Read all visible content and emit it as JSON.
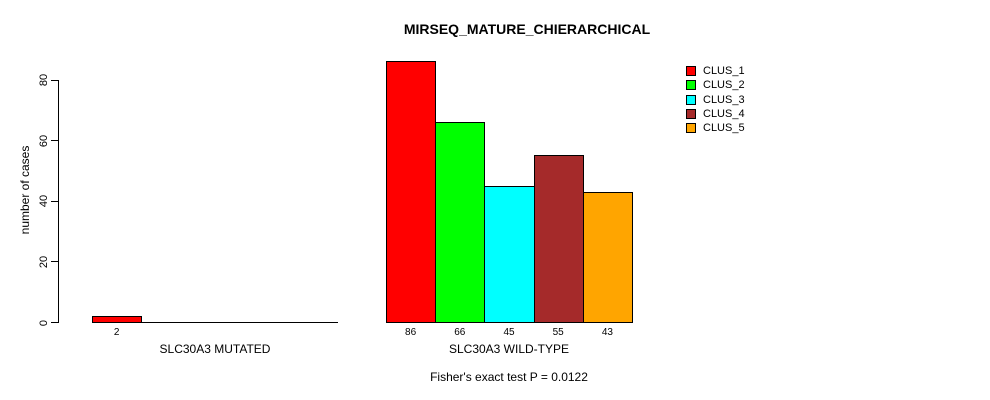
{
  "chart_data": {
    "type": "bar",
    "title": "MIRSEQ_MATURE_CHIERARCHICAL",
    "ylabel": "number of cases",
    "yticks": [
      0,
      20,
      40,
      60,
      80
    ],
    "ylim": [
      0,
      86
    ],
    "grid": false,
    "legend_position": "top-right",
    "categories": [
      "SLC30A3 MUTATED",
      "SLC30A3 WILD-TYPE"
    ],
    "series": [
      {
        "name": "CLUS_1",
        "color": "#FF0000",
        "values": [
          2,
          86
        ]
      },
      {
        "name": "CLUS_2",
        "color": "#00FF00",
        "values": [
          0,
          66
        ]
      },
      {
        "name": "CLUS_3",
        "color": "#00FFFF",
        "values": [
          0,
          45
        ]
      },
      {
        "name": "CLUS_4",
        "color": "#A52A2A",
        "values": [
          0,
          55
        ]
      },
      {
        "name": "CLUS_5",
        "color": "#FFA500",
        "values": [
          0,
          43
        ]
      }
    ],
    "footnote": "Fisher's exact test P = 0.0122",
    "text_color": "#000000",
    "background_color": "#FFFFFF"
  }
}
